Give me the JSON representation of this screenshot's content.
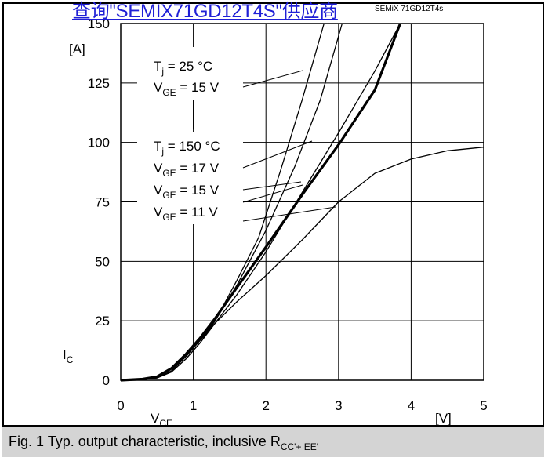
{
  "header": {
    "link_text": "查询\"SEMIX71GD12T4S\"供应商",
    "part_number": "SEMiX 71GD12T4s"
  },
  "caption": {
    "prefix": "Fig. 1 Typ. output characteristic, inclusive R",
    "subscript": "CC'+ EE'"
  },
  "chart_data": {
    "type": "line",
    "title": "",
    "xlim": [
      0,
      5
    ],
    "ylim": [
      0,
      150
    ],
    "x_ticks": [
      0,
      1,
      2,
      3,
      4,
      5
    ],
    "y_ticks": [
      0,
      25,
      50,
      75,
      100,
      125,
      150
    ],
    "x_unit": "[V]",
    "y_unit": "[A]",
    "xlabel": {
      "main": "V",
      "sub": "CE"
    },
    "ylabel": {
      "main": "I",
      "sub": "C"
    },
    "grid": true,
    "series": [
      {
        "id": "tj25_vge15",
        "width": 3.2,
        "points": [
          [
            0,
            0
          ],
          [
            0.3,
            0.5
          ],
          [
            0.5,
            1.5
          ],
          [
            0.7,
            5
          ],
          [
            0.9,
            11
          ],
          [
            1.1,
            18
          ],
          [
            1.3,
            26
          ],
          [
            1.6,
            39
          ],
          [
            2,
            56
          ],
          [
            2.5,
            78
          ],
          [
            3,
            99
          ],
          [
            3.5,
            122
          ],
          [
            3.85,
            150
          ]
        ]
      },
      {
        "id": "tj150_vge17",
        "width": 1.3,
        "points": [
          [
            0,
            0
          ],
          [
            0.3,
            0.3
          ],
          [
            0.5,
            1
          ],
          [
            0.7,
            3.5
          ],
          [
            0.9,
            9
          ],
          [
            1.1,
            16
          ],
          [
            1.3,
            25
          ],
          [
            1.6,
            40
          ],
          [
            2,
            63
          ],
          [
            2.4,
            90
          ],
          [
            2.75,
            118
          ],
          [
            3.05,
            150
          ]
        ]
      },
      {
        "id": "tj150_vge15",
        "width": 1.3,
        "points": [
          [
            0,
            0
          ],
          [
            0.3,
            0.3
          ],
          [
            0.5,
            1
          ],
          [
            0.7,
            3.5
          ],
          [
            0.9,
            9
          ],
          [
            1.1,
            16
          ],
          [
            1.3,
            24
          ],
          [
            1.6,
            36
          ],
          [
            2,
            54
          ],
          [
            2.5,
            79
          ],
          [
            3,
            104
          ],
          [
            3.5,
            130
          ],
          [
            3.85,
            150
          ]
        ]
      },
      {
        "id": "tj150_vge11",
        "width": 1.3,
        "points": [
          [
            0,
            0
          ],
          [
            0.3,
            0.3
          ],
          [
            0.5,
            1
          ],
          [
            0.7,
            4
          ],
          [
            0.9,
            10
          ],
          [
            1.1,
            17
          ],
          [
            1.3,
            24
          ],
          [
            1.6,
            33
          ],
          [
            2,
            44
          ],
          [
            2.5,
            59
          ],
          [
            3,
            75
          ],
          [
            3.5,
            87
          ],
          [
            4,
            93
          ],
          [
            4.5,
            96.5
          ],
          [
            5,
            98
          ]
        ]
      },
      {
        "id": "tj25_steep",
        "width": 1.3,
        "points": [
          [
            0,
            0
          ],
          [
            0.3,
            0.3
          ],
          [
            0.5,
            1
          ],
          [
            0.7,
            4
          ],
          [
            0.9,
            10
          ],
          [
            1.1,
            17
          ],
          [
            1.3,
            25
          ],
          [
            1.6,
            42
          ],
          [
            1.9,
            60
          ],
          [
            2.2,
            88
          ],
          [
            2.5,
            118
          ],
          [
            2.8,
            150
          ]
        ]
      }
    ],
    "annotations": [
      {
        "line1": {
          "main": "T",
          "sub": "j",
          "rest": " = 25 °C"
        },
        "line2": {
          "main": "V",
          "sub": "GE",
          "rest": " = 15 V"
        }
      },
      {
        "line1": {
          "main": "T",
          "sub": "j",
          "rest": " = 150 °C"
        },
        "line2": {
          "main": "V",
          "sub": "GE",
          "rest": " = 17 V"
        }
      },
      {
        "line1": {
          "main": "V",
          "sub": "GE",
          "rest": " = 15 V"
        }
      },
      {
        "line1": {
          "main": "V",
          "sub": "GE",
          "rest": " = 11 V"
        }
      }
    ],
    "colors": {
      "line": "#000000",
      "grid": "#000000",
      "caption_bg": "#d4d4d4",
      "link": "#1f1fd6"
    }
  }
}
